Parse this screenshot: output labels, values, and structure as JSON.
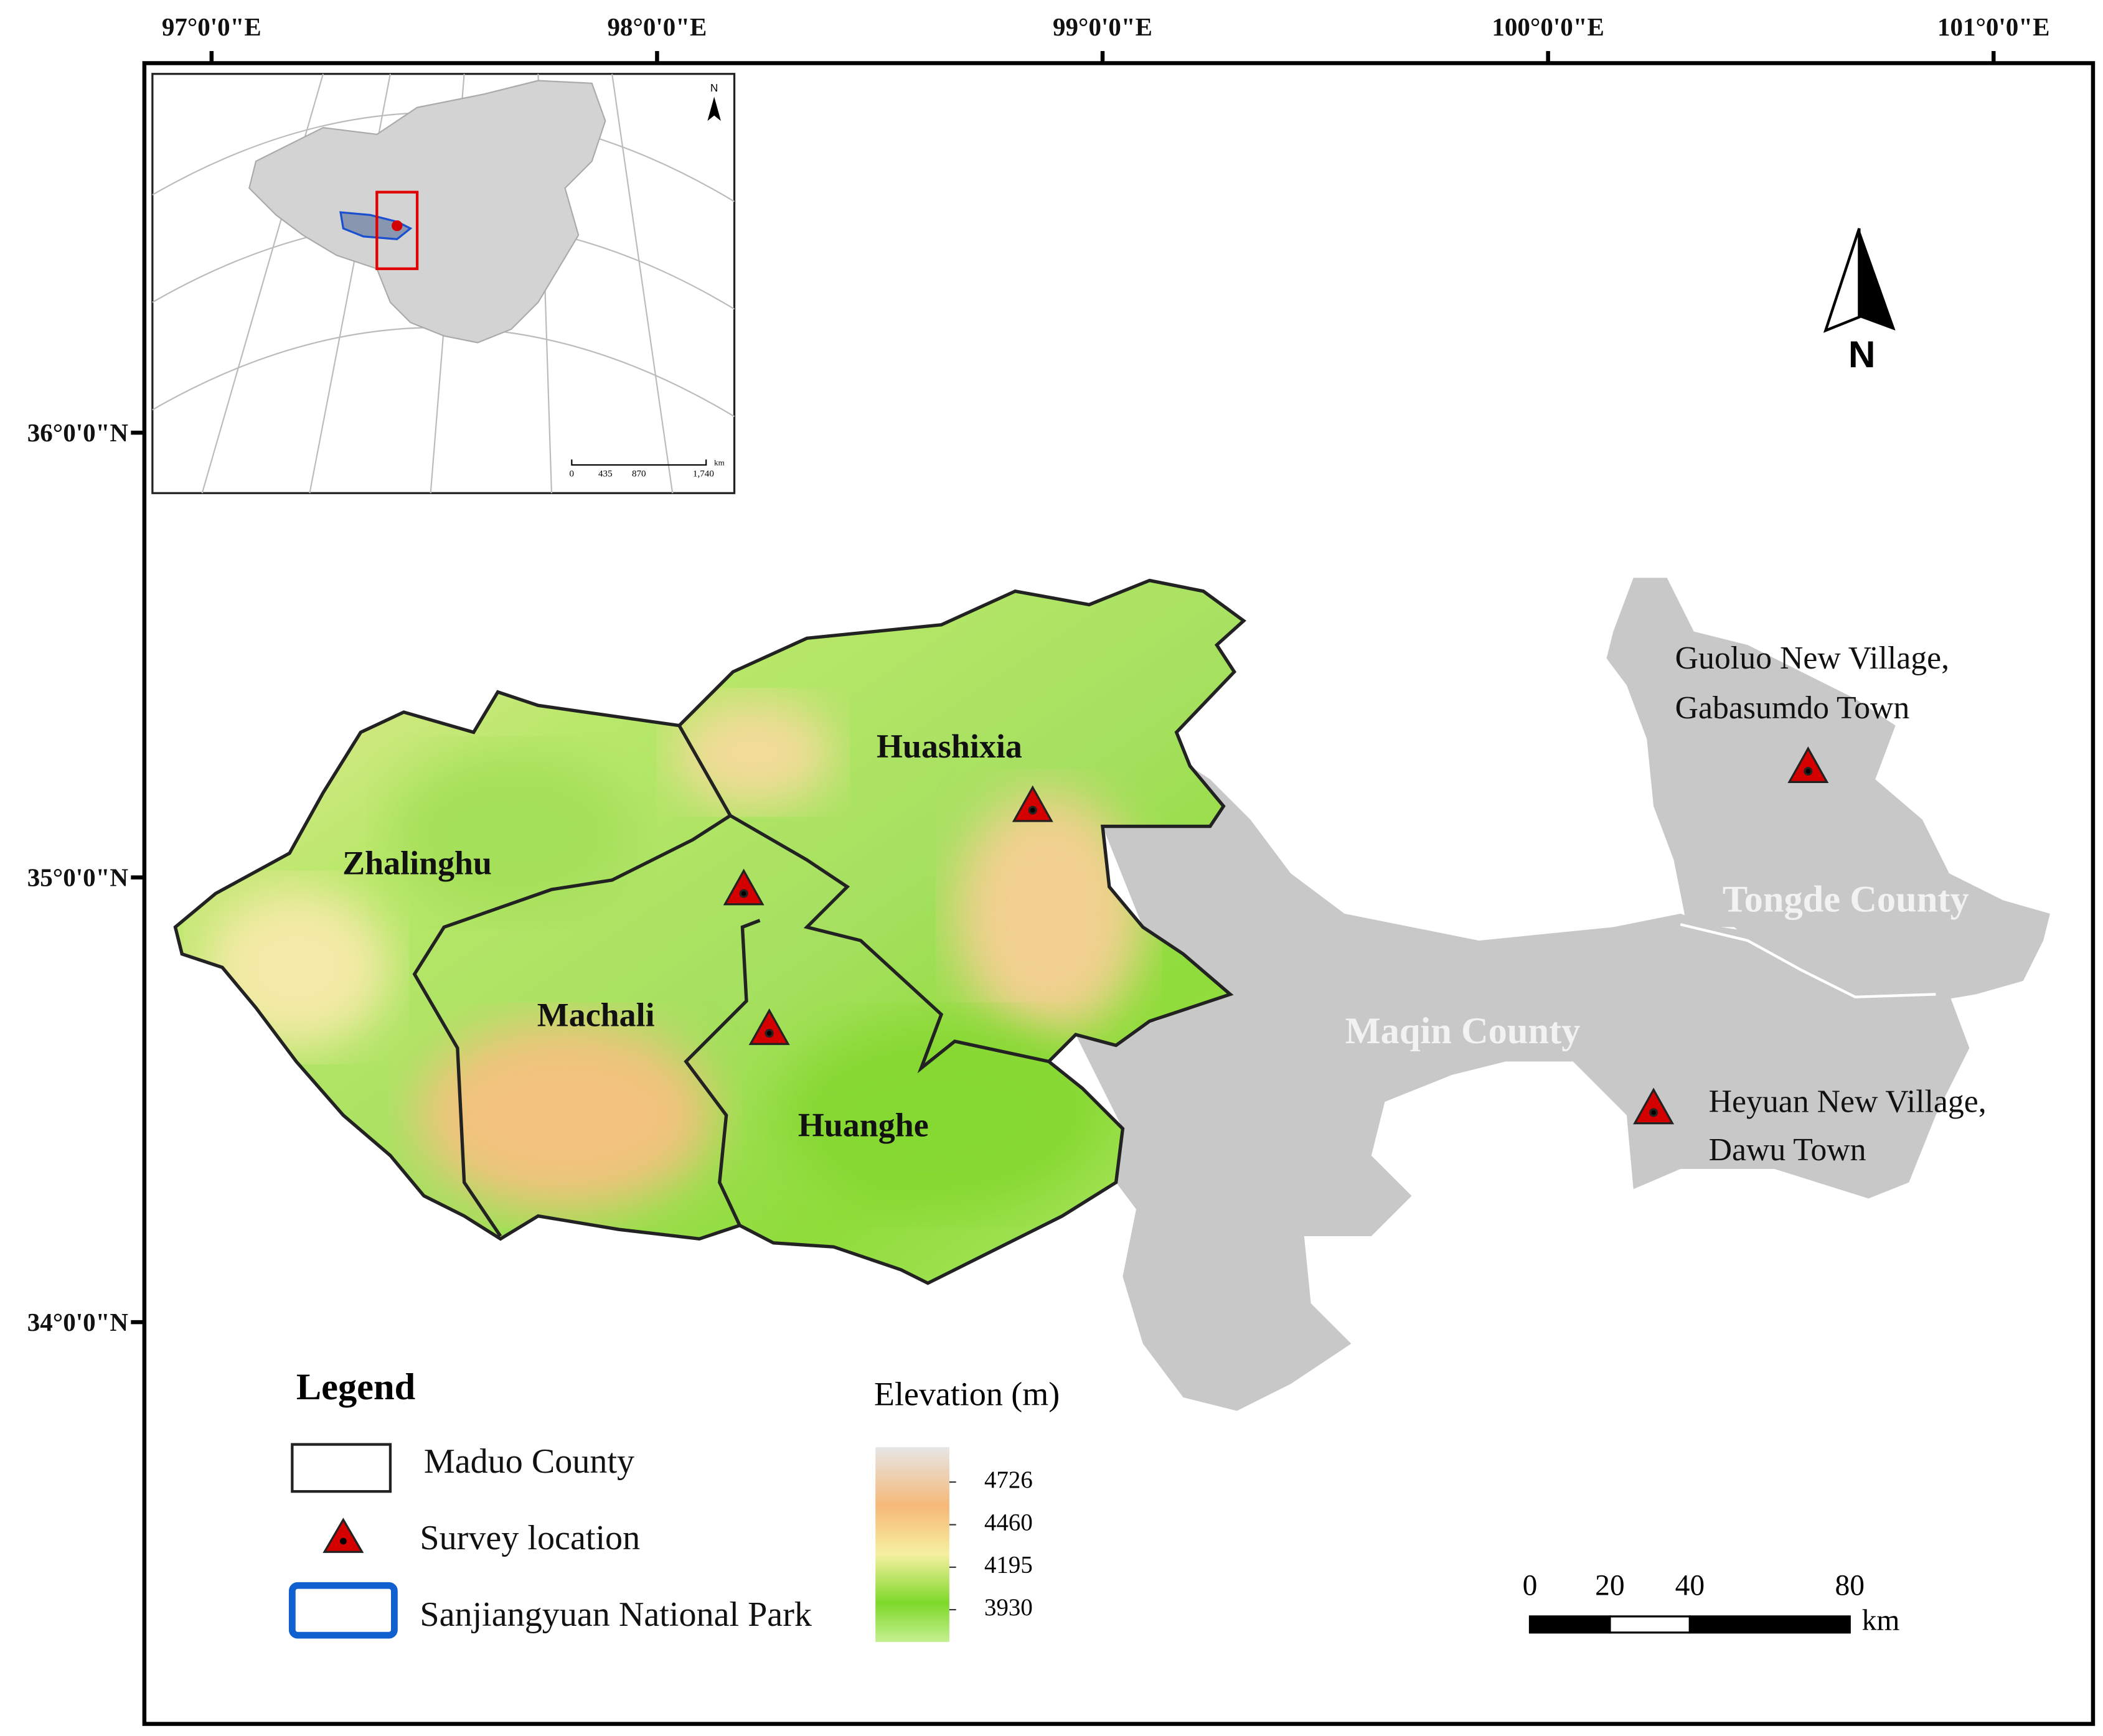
{
  "map": {
    "lon_ticks": [
      {
        "value": 97,
        "label": "97°0'0\"E"
      },
      {
        "value": 98,
        "label": "98°0'0\"E"
      },
      {
        "value": 99,
        "label": "99°0'0\"E"
      },
      {
        "value": 100,
        "label": "100°0'0\"E"
      },
      {
        "value": 101,
        "label": "101°0'0\"E"
      }
    ],
    "lat_ticks": [
      {
        "value": 36,
        "label": "36°0'0\"N"
      },
      {
        "value": 35,
        "label": "35°0'0\"N"
      },
      {
        "value": 34,
        "label": "34°0'0\"N"
      }
    ],
    "regions": [
      "Zhalinghu",
      "Machali",
      "Huashixia",
      "Huanghe"
    ],
    "counties": [
      "Maqin County",
      "Tongde County"
    ],
    "survey_sites": [
      {
        "lines": [
          "Guoluo New Village,",
          "Gabasumdo Town"
        ]
      },
      {
        "lines": [
          "Heyuan New Village,",
          "Dawu Town"
        ]
      }
    ],
    "north": "N",
    "inset": {
      "north": "N",
      "scale_labels": [
        "0",
        "435",
        "870",
        "1,740"
      ],
      "scale_unit": "km"
    }
  },
  "legend": {
    "title": "Legend",
    "items": [
      "Maduo County",
      "Survey location",
      "Sanjiangyuan National Park"
    ]
  },
  "elevation": {
    "title": "Elevation (m)",
    "ticks": [
      4726,
      4460,
      4195,
      3930
    ]
  },
  "scale_bar": {
    "ticks": [
      0,
      20,
      40,
      80
    ],
    "unit": "km"
  }
}
